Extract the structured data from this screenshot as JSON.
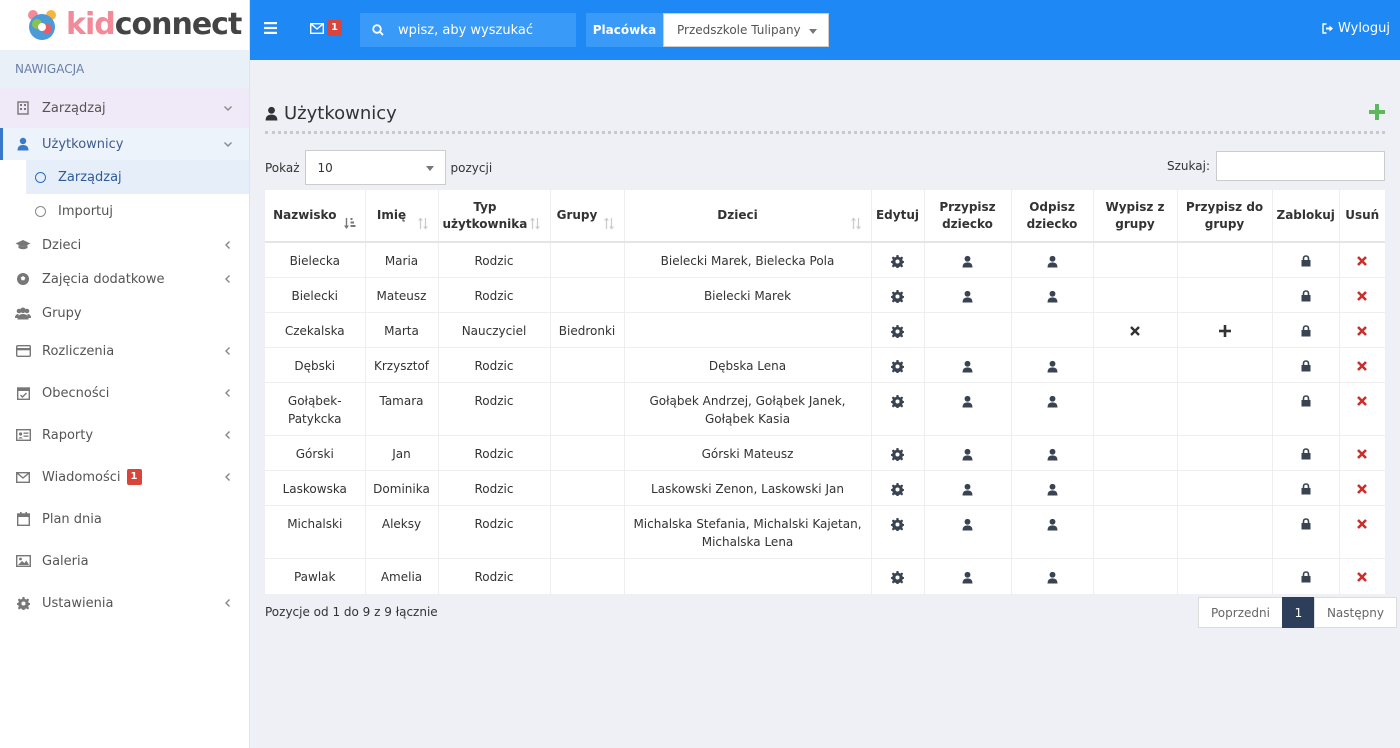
{
  "brand": {
    "kid": "kid",
    "connect": "connect"
  },
  "sidebar": {
    "heading": "NAWIGACJA",
    "items": [
      {
        "label": "Zarządzaj"
      },
      {
        "label": "Użytkownicy",
        "subs": [
          {
            "label": "Zarządzaj"
          },
          {
            "label": "Importuj"
          }
        ]
      },
      {
        "label": "Dzieci"
      },
      {
        "label": "Zajęcia dodatkowe"
      },
      {
        "label": "Grupy"
      },
      {
        "label": "Rozliczenia"
      },
      {
        "label": "Obecności"
      },
      {
        "label": "Raporty"
      },
      {
        "label": "Wiadomości",
        "badge": "1"
      },
      {
        "label": "Plan dnia"
      },
      {
        "label": "Galeria"
      },
      {
        "label": "Ustawienia"
      }
    ]
  },
  "topbar": {
    "mail_badge": "1",
    "search_placeholder": "wpisz, aby wyszukać",
    "placowka_label": "Placówka",
    "placowka_value": "Przedszkole Tulipany",
    "logout": "Wyloguj"
  },
  "main": {
    "title": "Użytkownicy",
    "show_label": "Pokaż",
    "show_value": "10",
    "show_suffix": "pozycji",
    "search_label": "Szukaj:",
    "info": "Pozycje od 1 do 9 z 9 łącznie",
    "pager": {
      "prev": "Poprzedni",
      "page": "1",
      "next": "Następny"
    }
  },
  "table": {
    "headers": [
      "Nazwisko",
      "Imię",
      "Typ użytkownika",
      "Grupy",
      "Dzieci",
      "Edytuj",
      "Przypisz dziecko",
      "Odpisz dziecko",
      "Wypisz z grupy",
      "Przypisz do grupy",
      "Zablokuj",
      "Usuń"
    ],
    "rows": [
      {
        "nazwisko": "Bielecka",
        "imie": "Maria",
        "typ": "Rodzic",
        "grupy": "",
        "dzieci": "Bielecki Marek, Bielecka Pola"
      },
      {
        "nazwisko": "Bielecki",
        "imie": "Mateusz",
        "typ": "Rodzic",
        "grupy": "",
        "dzieci": "Bielecki Marek"
      },
      {
        "nazwisko": "Czekalska",
        "imie": "Marta",
        "typ": "Nauczyciel",
        "grupy": "Biedronki",
        "dzieci": ""
      },
      {
        "nazwisko": "Dębski",
        "imie": "Krzysztof",
        "typ": "Rodzic",
        "grupy": "",
        "dzieci": "Dębska Lena"
      },
      {
        "nazwisko": "Gołąbek-Patykcka",
        "imie": "Tamara",
        "typ": "Rodzic",
        "grupy": "",
        "dzieci": "Gołąbek Andrzej, Gołąbek Janek, Gołąbek Kasia"
      },
      {
        "nazwisko": "Górski",
        "imie": "Jan",
        "typ": "Rodzic",
        "grupy": "",
        "dzieci": "Górski Mateusz"
      },
      {
        "nazwisko": "Laskowska",
        "imie": "Dominika",
        "typ": "Rodzic",
        "grupy": "",
        "dzieci": "Laskowski Zenon, Laskowski Jan"
      },
      {
        "nazwisko": "Michalski",
        "imie": "Aleksy",
        "typ": "Rodzic",
        "grupy": "",
        "dzieci": "Michalska Stefania, Michalski Kajetan, Michalska Lena"
      },
      {
        "nazwisko": "Pawlak",
        "imie": "Amelia",
        "typ": "Rodzic",
        "grupy": "",
        "dzieci": ""
      }
    ]
  }
}
